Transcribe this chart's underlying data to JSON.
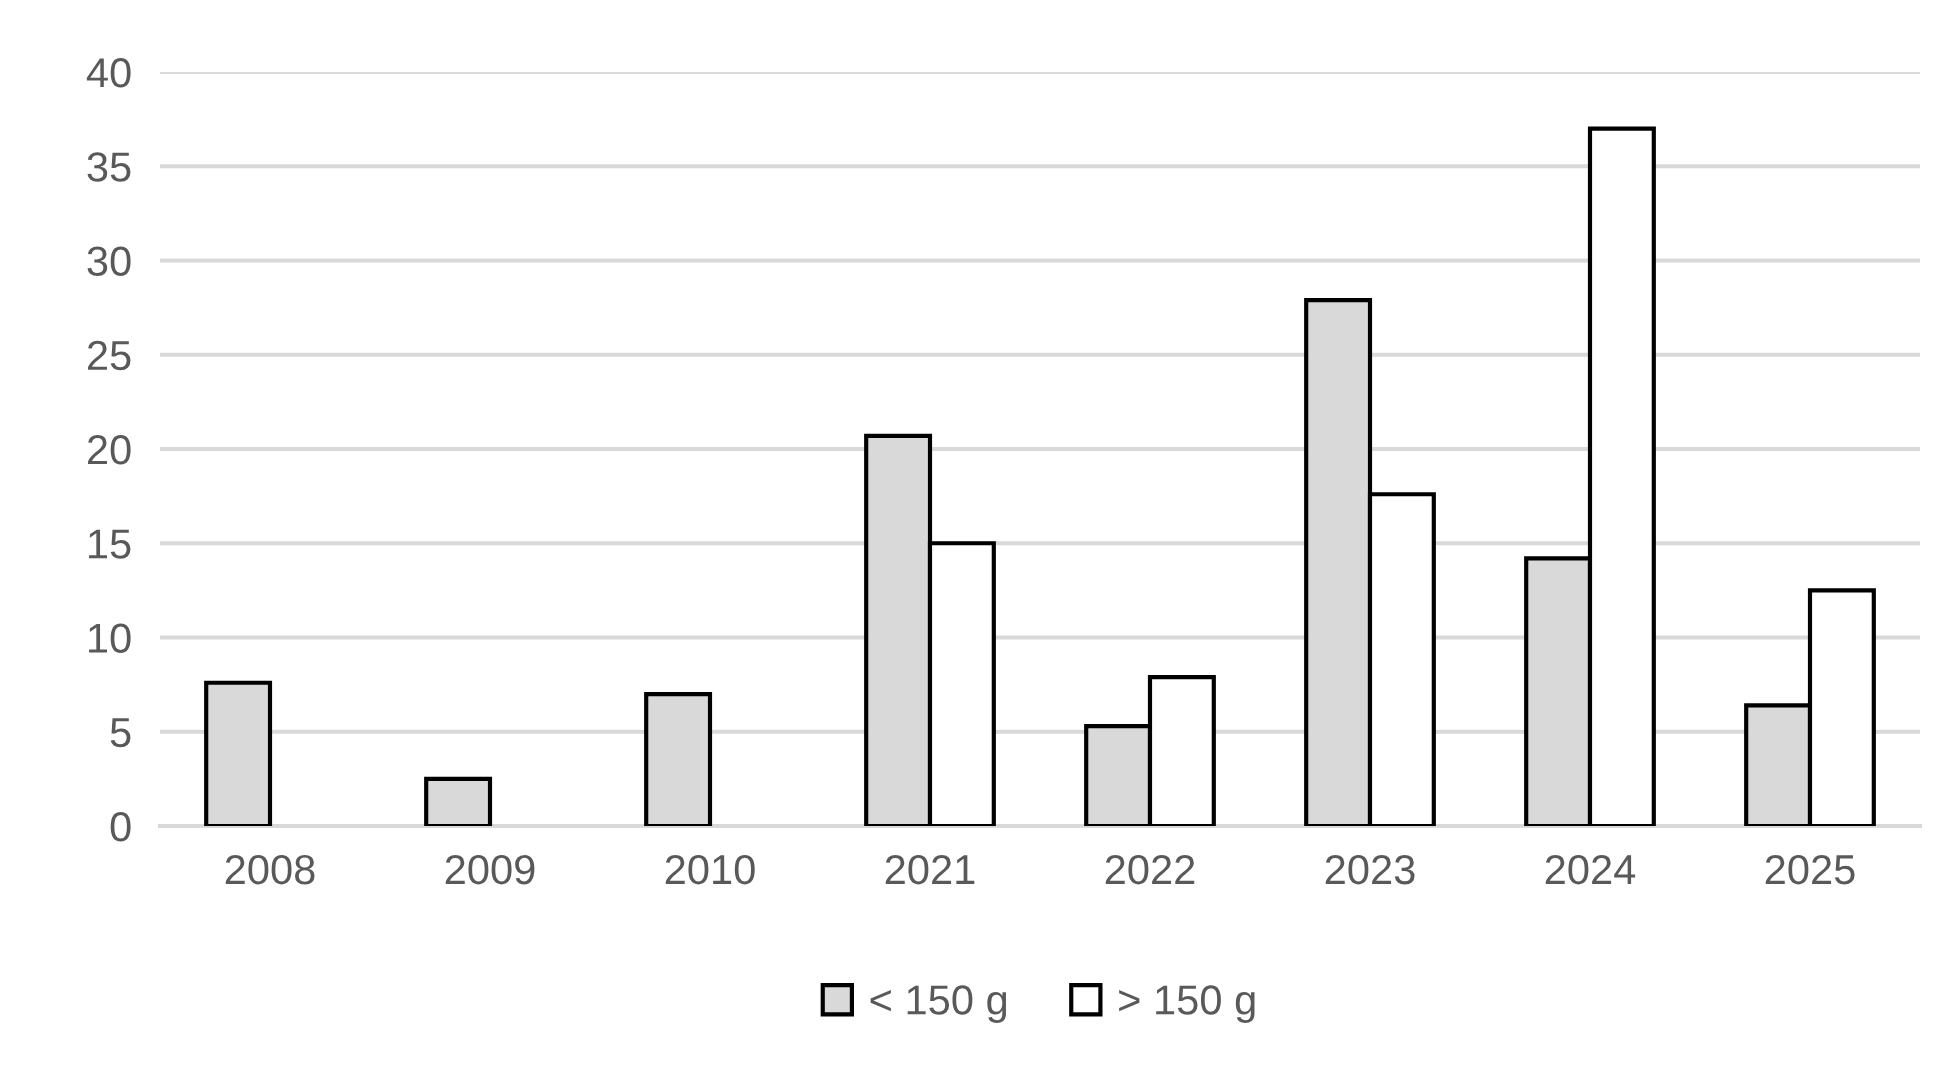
{
  "chart_data": {
    "type": "bar",
    "categories": [
      "2008",
      "2009",
      "2010",
      "2021",
      "2022",
      "2023",
      "2024",
      "2025"
    ],
    "series": [
      {
        "name": "< 150 g",
        "color": "#d9d9d9",
        "values": [
          7.6,
          2.5,
          7.0,
          20.7,
          5.3,
          27.9,
          14.2,
          6.4
        ]
      },
      {
        "name": "> 150 g",
        "color": "#ffffff",
        "values": [
          null,
          null,
          null,
          15.0,
          7.9,
          17.6,
          37.0,
          12.5
        ]
      }
    ],
    "ylim": [
      0,
      40
    ],
    "yticks": [
      0,
      5,
      10,
      15,
      20,
      25,
      30,
      35,
      40
    ],
    "grid": "y",
    "legend": "bottom"
  }
}
